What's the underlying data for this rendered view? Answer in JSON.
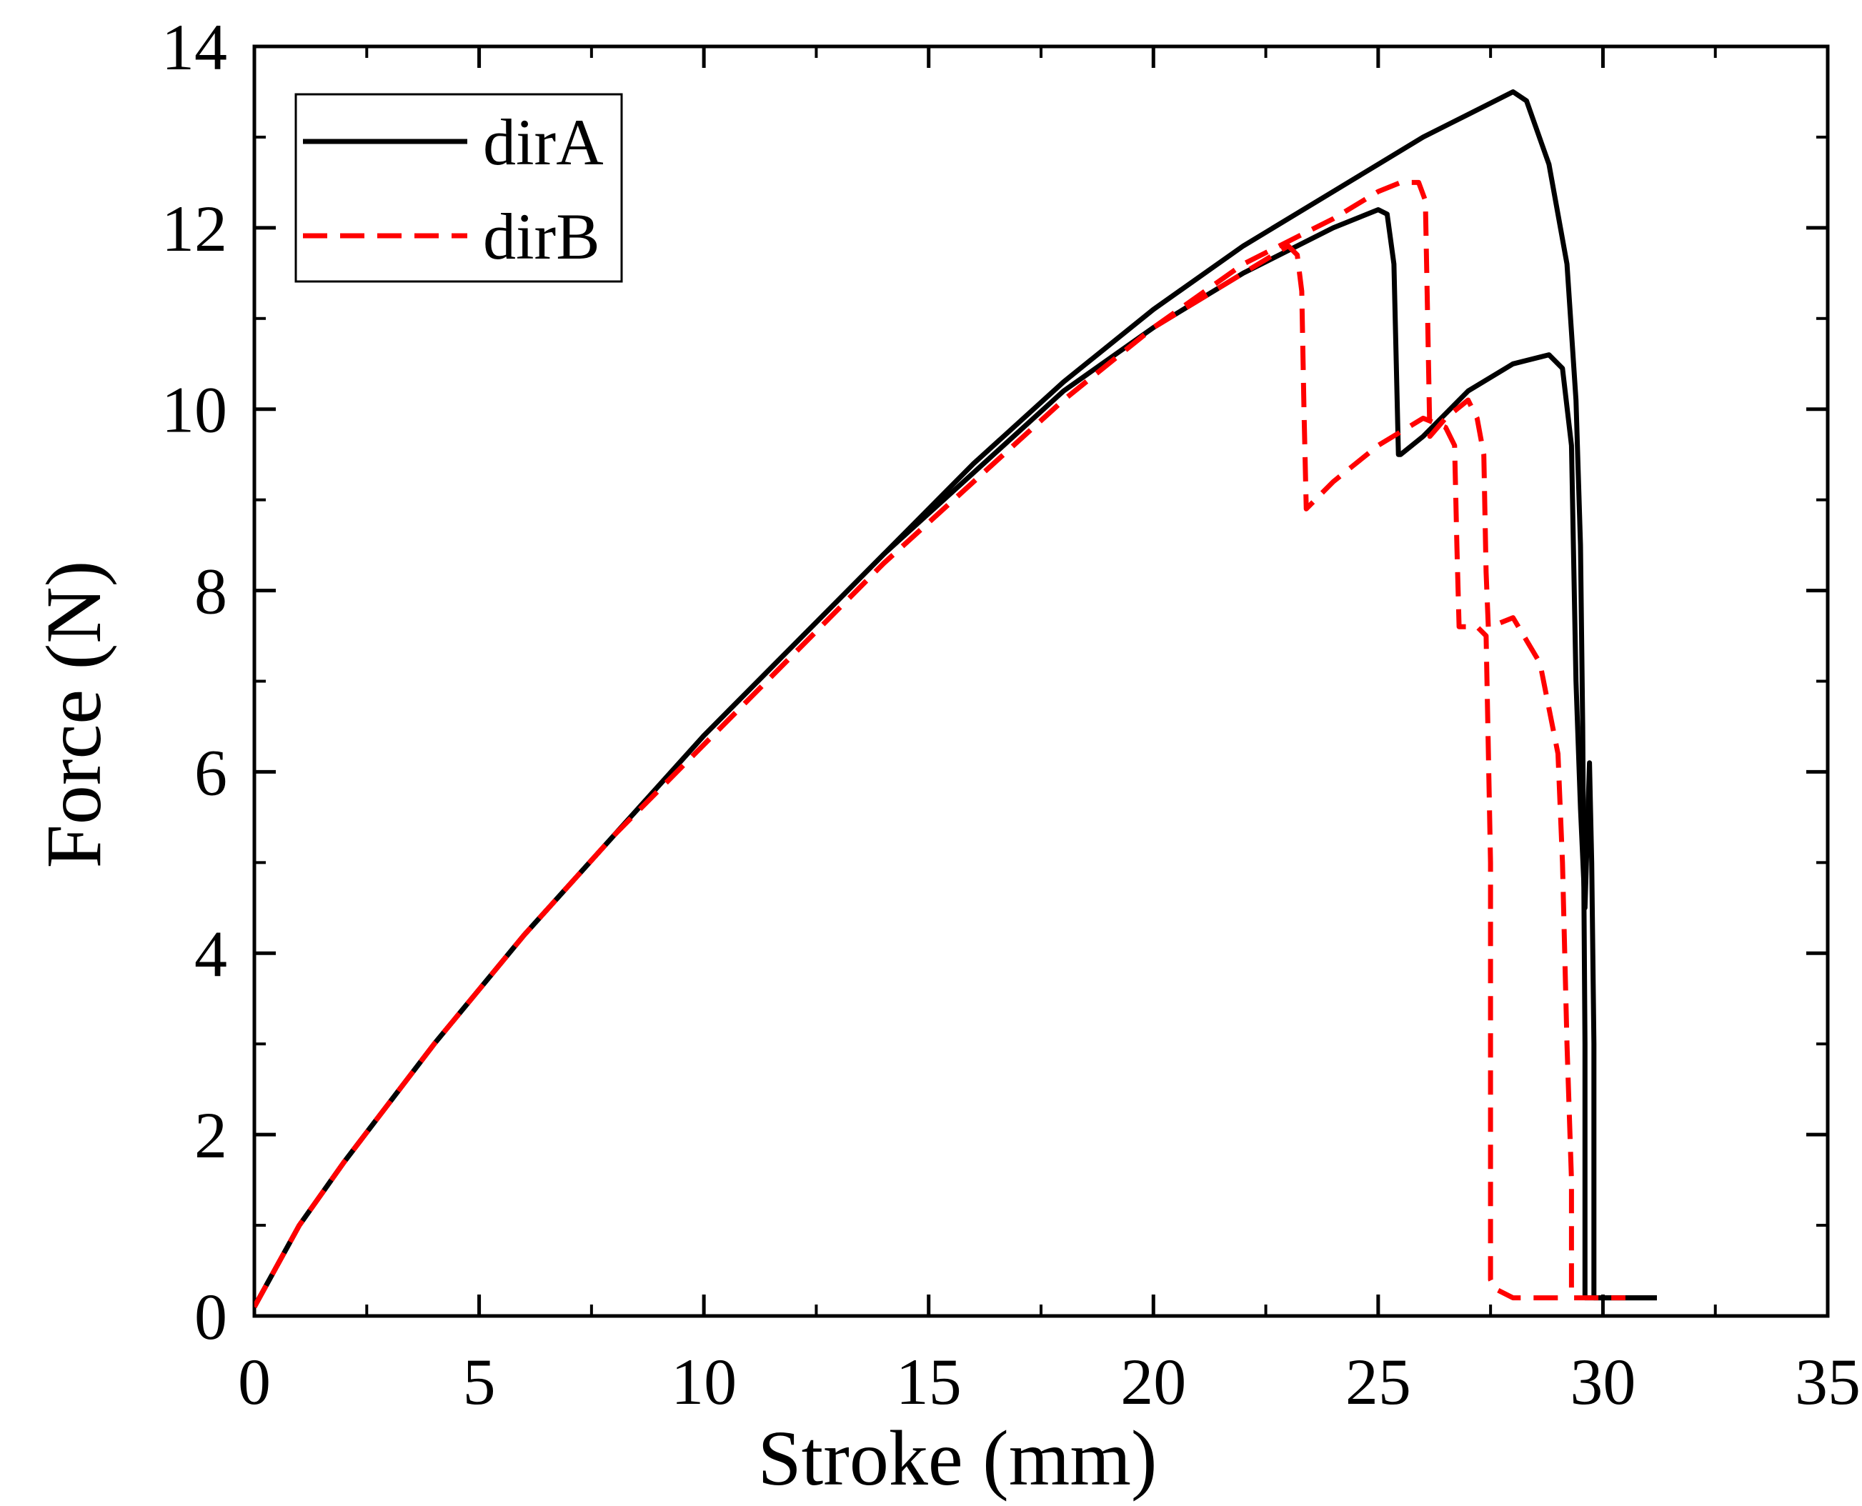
{
  "chart_data": {
    "type": "line",
    "title": "",
    "xlabel": "Stroke (mm)",
    "ylabel": "Force (N)",
    "xlim": [
      0,
      35
    ],
    "ylim": [
      0,
      14
    ],
    "xticks": [
      0,
      5,
      10,
      15,
      20,
      25,
      30,
      35
    ],
    "yticks": [
      0,
      2,
      4,
      6,
      8,
      10,
      12,
      14
    ],
    "grid": false,
    "legend_position": "top-left",
    "legend": [
      {
        "label": "dirA",
        "color": "#000000",
        "style": "solid"
      },
      {
        "label": "dirB",
        "color": "#ff0000",
        "style": "dashed"
      }
    ],
    "series": [
      {
        "group": "dirA",
        "color": "#000000",
        "style": "solid",
        "x": [
          0,
          1,
          2,
          4,
          6,
          8,
          10,
          12,
          14,
          16,
          18,
          20,
          22,
          24,
          25,
          26,
          27,
          28,
          28.3,
          28.8,
          29.2,
          29.4,
          29.5,
          29.55,
          29.6,
          29.6,
          30,
          31.2
        ],
        "y": [
          0.1,
          1.0,
          1.7,
          3.0,
          4.2,
          5.3,
          6.4,
          7.4,
          8.4,
          9.4,
          10.3,
          11.1,
          11.8,
          12.4,
          12.7,
          13.0,
          13.25,
          13.5,
          13.4,
          12.7,
          11.6,
          10.1,
          8.5,
          6.5,
          3.0,
          0.2,
          0.2,
          0.2
        ]
      },
      {
        "group": "dirA",
        "color": "#000000",
        "style": "solid",
        "x": [
          0,
          1,
          2,
          4,
          6,
          8,
          10,
          12,
          14,
          16,
          18,
          20,
          22,
          24,
          25,
          25.2,
          25.35,
          25.45,
          25.5,
          26,
          27,
          28,
          28.8,
          29.1,
          29.3,
          29.4,
          29.5,
          29.6,
          29.7,
          29.75,
          29.8,
          29.8,
          31.2
        ],
        "y": [
          0.1,
          1.0,
          1.7,
          3.0,
          4.2,
          5.3,
          6.4,
          7.4,
          8.4,
          9.3,
          10.2,
          10.9,
          11.5,
          12.0,
          12.2,
          12.15,
          11.6,
          9.5,
          9.5,
          9.7,
          10.2,
          10.5,
          10.6,
          10.45,
          9.6,
          7.0,
          5.6,
          4.5,
          6.1,
          5.0,
          3.0,
          0.2,
          0.2
        ]
      },
      {
        "group": "dirB",
        "color": "#ff0000",
        "style": "dashed",
        "x": [
          0,
          1,
          2,
          4,
          6,
          8,
          10,
          12,
          14,
          16,
          18,
          20,
          22,
          23,
          23.2,
          23.3,
          23.35,
          23.4,
          24,
          25,
          26,
          26.5,
          26.7,
          26.75,
          26.8,
          27.2,
          27.4,
          27.5,
          27.5,
          27.6,
          28,
          29
        ],
        "y": [
          0.1,
          1.0,
          1.7,
          3.0,
          4.2,
          5.3,
          6.3,
          7.3,
          8.3,
          9.2,
          10.1,
          10.9,
          11.5,
          11.8,
          11.7,
          11.3,
          10.0,
          8.9,
          9.2,
          9.6,
          9.9,
          9.8,
          9.6,
          8.5,
          7.6,
          7.6,
          7.5,
          5.0,
          0.4,
          0.3,
          0.2,
          0.2
        ]
      },
      {
        "group": "dirB",
        "color": "#ff0000",
        "style": "dashed",
        "x": [
          0,
          1,
          2,
          4,
          6,
          8,
          10,
          12,
          14,
          16,
          18,
          20,
          22,
          24,
          25,
          25.5,
          25.9,
          26.05,
          26.1,
          26.15,
          26.5,
          27.0,
          27.2,
          27.35,
          27.4,
          27.45,
          27.5,
          28,
          28.6,
          29.0,
          29.1,
          29.2,
          29.3,
          29.3,
          30.5
        ],
        "y": [
          0.1,
          1.0,
          1.7,
          3.0,
          4.2,
          5.3,
          6.3,
          7.3,
          8.3,
          9.2,
          10.1,
          10.9,
          11.6,
          12.1,
          12.4,
          12.5,
          12.5,
          12.3,
          11.0,
          9.7,
          9.9,
          10.1,
          9.9,
          9.5,
          8.2,
          7.6,
          7.6,
          7.7,
          7.2,
          6.2,
          5.0,
          3.0,
          1.5,
          0.2,
          0.2
        ]
      }
    ]
  }
}
